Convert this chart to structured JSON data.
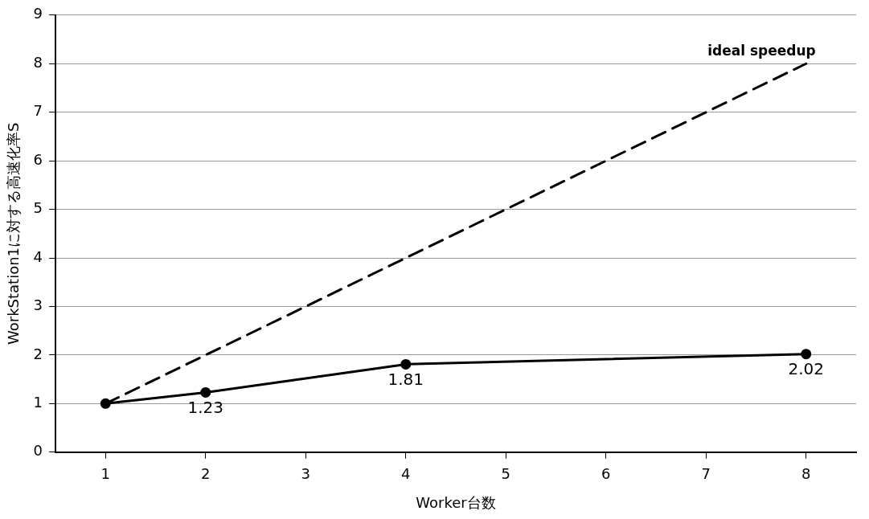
{
  "chart_data": {
    "type": "line",
    "xlabel": "Worker台数",
    "ylabel": "WorkStation1に対する高速化率S",
    "xlim": [
      0.5,
      8.5
    ],
    "xticks": [
      1,
      2,
      3,
      4,
      5,
      6,
      7,
      8
    ],
    "ylim": [
      0,
      9
    ],
    "yticks": [
      0,
      1,
      2,
      3,
      4,
      5,
      6,
      7,
      8,
      9
    ],
    "grid": "y",
    "series": [
      {
        "x": [
          1,
          2,
          4,
          8
        ],
        "values": [
          1,
          1.23,
          1.81,
          2.02
        ],
        "color": "#000000",
        "marker": "circle",
        "line_style": "solid",
        "value_labels": [
          null,
          "1.23",
          "1.81",
          "2.02"
        ]
      },
      {
        "name": "ideal speedup",
        "x": [
          1,
          8
        ],
        "values": [
          1,
          8
        ],
        "color": "#000000",
        "marker": "none",
        "line_style": "dashed"
      }
    ]
  }
}
